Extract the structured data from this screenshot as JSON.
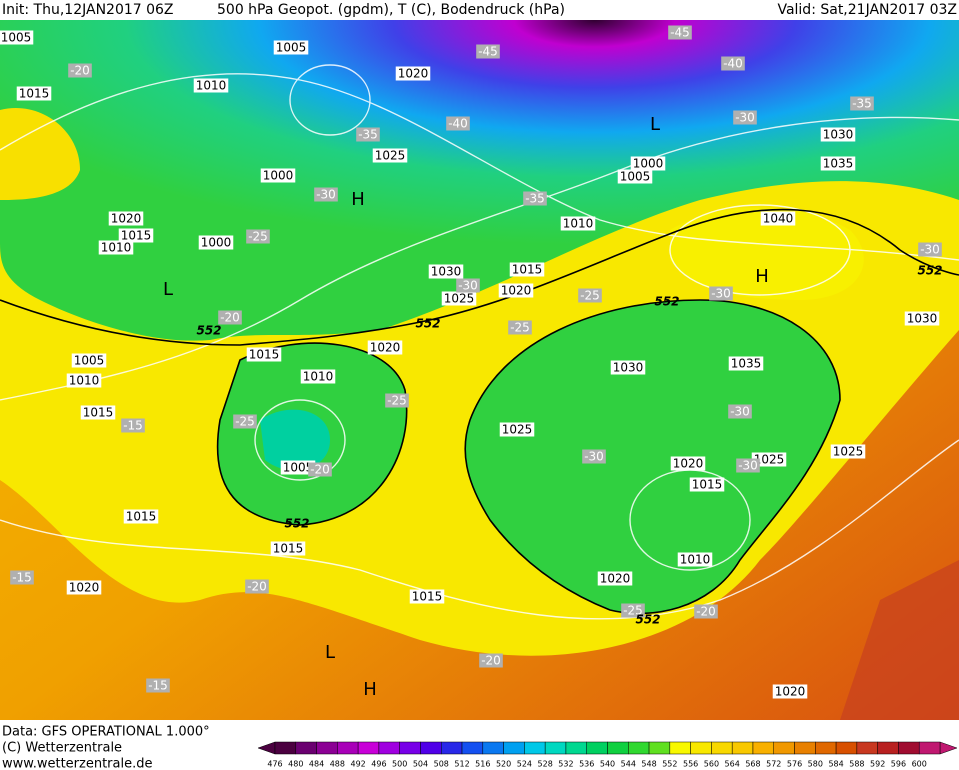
{
  "header": {
    "init": "Init: Thu,12JAN2017 06Z",
    "title": "500 hPa Geopot. (gpdm), T (C), Bodendruck (hPa)",
    "valid": "Valid: Sat,21JAN2017 03Z"
  },
  "footer": {
    "source": "Data: GFS OPERATIONAL 1.000°",
    "copyright": "(C) Wetterzentrale",
    "url": "www.wetterzentrale.de"
  },
  "colorbar": {
    "values": [
      476,
      480,
      484,
      488,
      492,
      496,
      500,
      504,
      508,
      512,
      516,
      520,
      524,
      528,
      532,
      536,
      540,
      544,
      548,
      552,
      556,
      560,
      564,
      568,
      572,
      576,
      580,
      584,
      588,
      592,
      596,
      600
    ],
    "colors": [
      "#4b0040",
      "#6a0070",
      "#8b0094",
      "#a800b8",
      "#c800d8",
      "#a000e0",
      "#7800e8",
      "#5000e8",
      "#2828e8",
      "#1450f0",
      "#0a78f0",
      "#00a0f0",
      "#00c8e8",
      "#00d8c0",
      "#00d890",
      "#00d060",
      "#10d040",
      "#30d830",
      "#60e020",
      "#f8f800",
      "#f8e800",
      "#f8d800",
      "#f8c800",
      "#f8b000",
      "#f09800",
      "#e88000",
      "#e06800",
      "#d85000",
      "#c83820",
      "#b82020",
      "#a00c30",
      "#c01870"
    ]
  },
  "map": {
    "pressure_labels": [
      1005,
      1015,
      1010,
      1005,
      1020,
      1025,
      1000,
      1020,
      1015,
      1010,
      1000,
      1030,
      1025,
      1015,
      1020,
      1010,
      1005,
      1000,
      1040,
      1035,
      1030,
      1030,
      1015,
      1020,
      1010,
      1005,
      1010,
      1015,
      1005,
      1030,
      1035,
      1025,
      1020,
      1015,
      1025,
      1025,
      1010,
      1020,
      1015,
      1015,
      1015,
      1020,
      1020
    ],
    "temperature_labels": [
      -20,
      -45,
      -45,
      -40,
      -35,
      -30,
      -40,
      -35,
      -30,
      -35,
      -25,
      -20,
      -30,
      -25,
      -30,
      -25,
      -30,
      -25,
      -25,
      -15,
      -30,
      -30,
      -30,
      -20,
      -25,
      -20,
      -20,
      -15,
      -20,
      -15
    ],
    "centers": [
      "L",
      "H",
      "L",
      "H",
      "L",
      "H"
    ],
    "contour_labels": [
      552,
      552,
      552,
      552,
      552,
      552
    ]
  }
}
